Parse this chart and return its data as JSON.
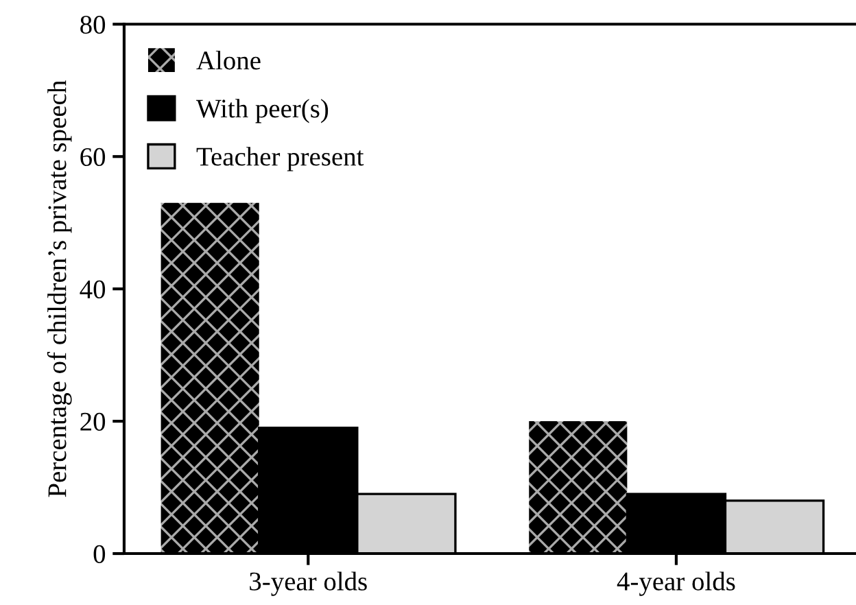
{
  "chart_data": {
    "type": "bar",
    "ylabel": "Percentage of children’s private speech",
    "categories": [
      "3-year olds",
      "4-year olds"
    ],
    "series": [
      {
        "name": "Alone",
        "color": "#000000",
        "values": [
          53,
          20
        ]
      },
      {
        "name": "With peer(s)",
        "color": "#000000",
        "values": [
          19,
          9
        ]
      },
      {
        "name": "Teacher present",
        "color": "#d4d4d4",
        "values": [
          9,
          8
        ]
      }
    ],
    "ylim": [
      0,
      80
    ],
    "yticks": [
      0,
      20,
      40,
      60,
      80
    ],
    "grid": false,
    "legend": "top left"
  }
}
